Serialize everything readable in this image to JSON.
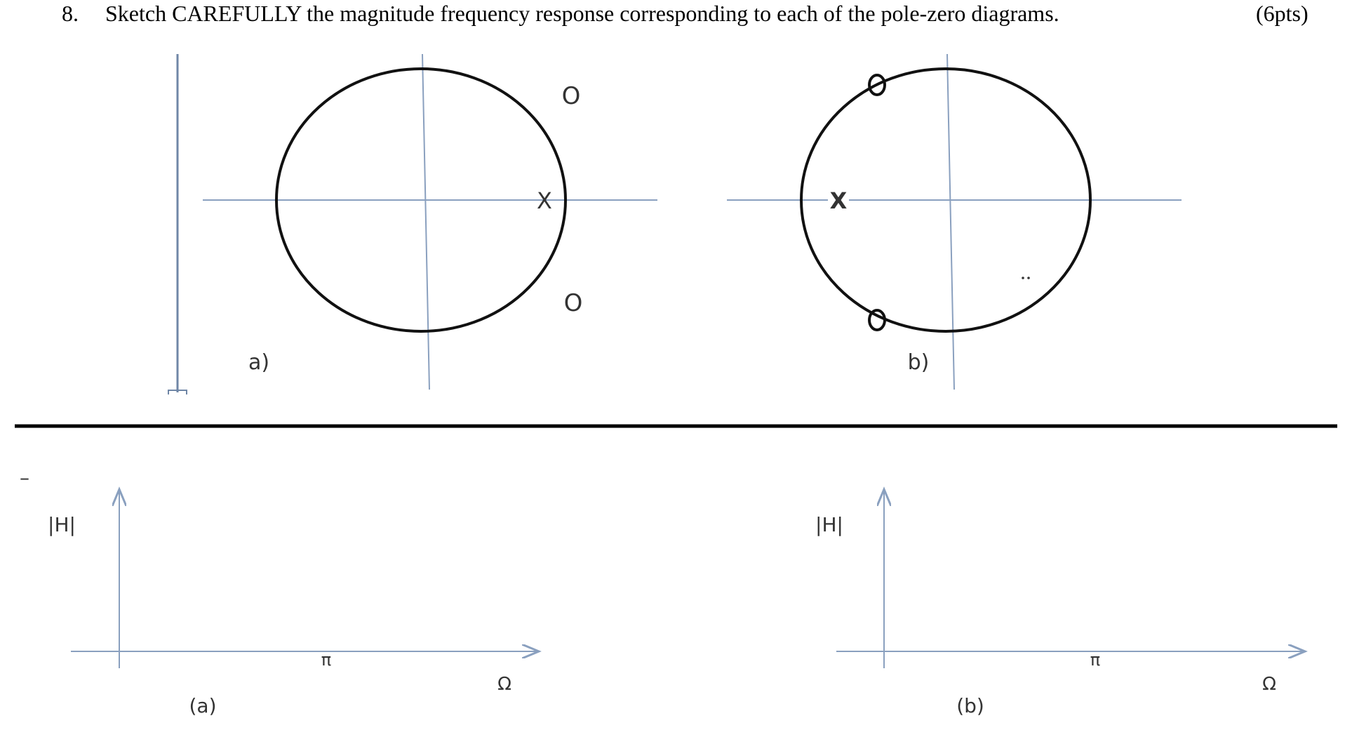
{
  "question": {
    "number": "8.",
    "text": "Sketch CAREFULLY the magnitude frequency response corresponding to each of the pole-zero diagrams.",
    "points": "(6pts)"
  },
  "diagrams": [
    {
      "label": "a)",
      "pole_marker": "X",
      "zero_marker": "O"
    },
    {
      "label": "b)",
      "pole_marker": "X",
      "zero_marker": "O"
    }
  ],
  "plots": [
    {
      "ylabel": "|H|",
      "xtick": "π",
      "xlabel": "Ω",
      "label": "(a)"
    },
    {
      "ylabel": "|H|",
      "xtick": "π",
      "xlabel": "Ω",
      "label": "(b)"
    }
  ],
  "margin_mark": "–",
  "colors": {
    "axis": "#8aa0bf",
    "circle": "#111111",
    "text": "#000000"
  }
}
